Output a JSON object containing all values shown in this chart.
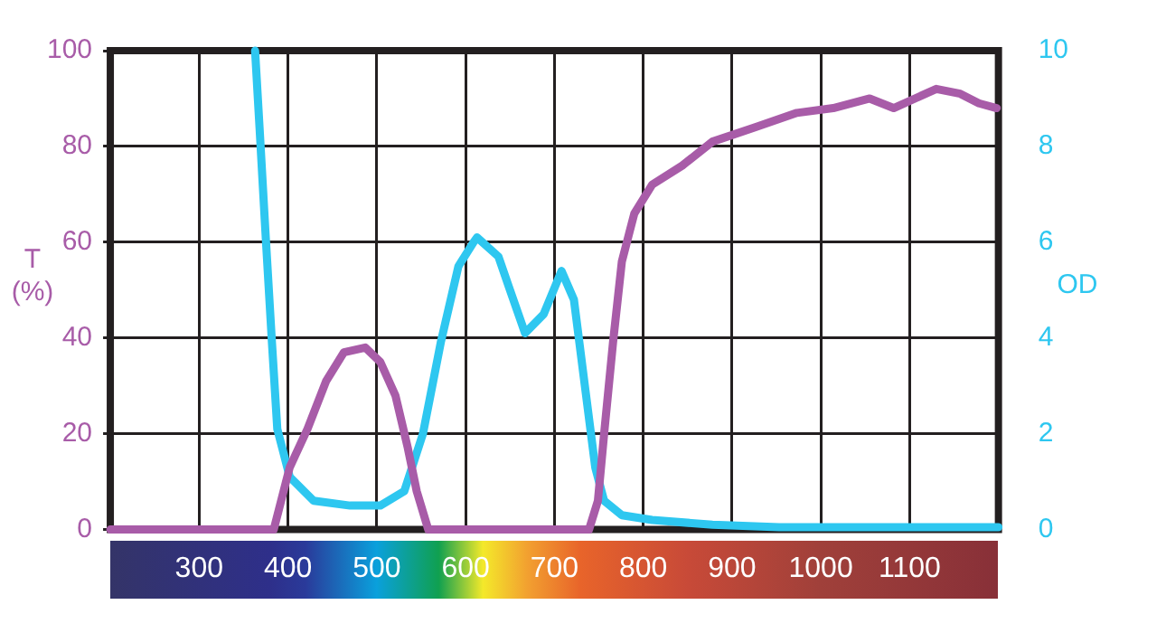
{
  "chart_data": {
    "type": "line",
    "ylabel": "T (%)",
    "y2label": "OD",
    "xlim": [
      200,
      1200
    ],
    "xticks": [
      300,
      400,
      500,
      600,
      700,
      800,
      900,
      1000,
      1100
    ],
    "ylim": [
      0,
      100
    ],
    "yticks": [
      0,
      20,
      40,
      60,
      80,
      100
    ],
    "y2lim": [
      0,
      10
    ],
    "y2ticks": [
      0,
      2,
      4,
      6,
      8,
      10
    ],
    "grid": true,
    "marker": "none",
    "line_style": "solid",
    "series": [
      {
        "color": "#a85ca8",
        "x": [
          200,
          384,
          402,
          422,
          443,
          463,
          487,
          504,
          521,
          535,
          545,
          558,
          739,
          749,
          756,
          766,
          776,
          790,
          810,
          844,
          878,
          926,
          973,
          1014,
          1055,
          1082,
          1130,
          1157,
          1178,
          1198
        ],
        "values": [
          0,
          0,
          13,
          21,
          31,
          37,
          38,
          35,
          28,
          17,
          8,
          0,
          0,
          6,
          20,
          39,
          56,
          66,
          72,
          76,
          81,
          84,
          87,
          88,
          90,
          88,
          92,
          91,
          89,
          88
        ]
      },
      {
        "color": "#2ec7f0",
        "axis": "y2",
        "x": [
          363,
          368,
          375,
          382,
          388,
          402,
          429,
          470,
          504,
          531,
          552,
          572,
          592,
          609,
          613,
          637,
          650,
          667,
          688,
          708,
          722,
          735,
          746,
          756,
          776,
          810,
          878,
          953,
          1200
        ],
        "values": [
          10,
          8.4,
          6.1,
          3.9,
          2.1,
          1.1,
          0.6,
          0.5,
          0.5,
          0.8,
          2,
          3.9,
          5.5,
          6,
          6.1,
          5.7,
          5,
          4.1,
          4.5,
          5.4,
          4.8,
          2.9,
          1.3,
          0.6,
          0.3,
          0.2,
          0.1,
          0.05,
          0.05
        ]
      }
    ]
  }
}
